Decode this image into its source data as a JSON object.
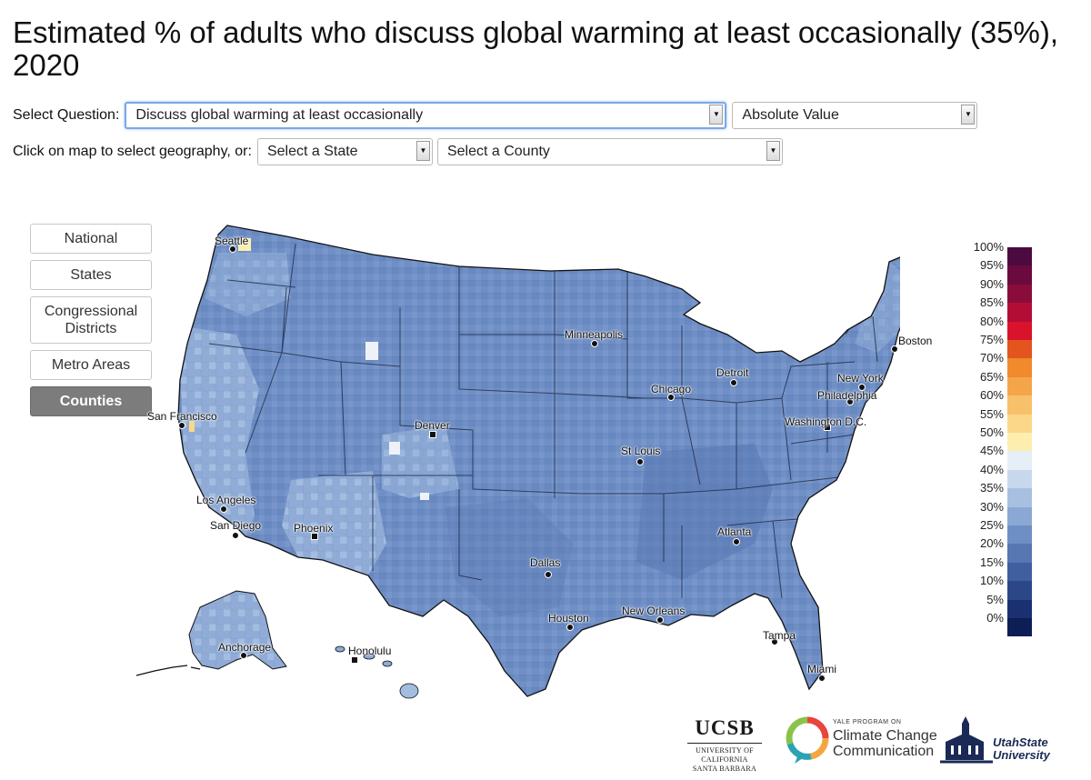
{
  "title": "Estimated % of adults who discuss global warming at least occasionally (35%), 2020",
  "controls": {
    "question_label": "Select Question:",
    "question_value": "Discuss global warming at least occasionally",
    "value_type": "Absolute Value",
    "geo_label": "Click on map to select geography, or:",
    "state_placeholder": "Select a State",
    "county_placeholder": "Select a County"
  },
  "geography_buttons": [
    {
      "label": "National",
      "active": false
    },
    {
      "label": "States",
      "active": false
    },
    {
      "label": "Congressional Districts",
      "active": false
    },
    {
      "label": "Metro Areas",
      "active": false
    },
    {
      "label": "Counties",
      "active": true
    }
  ],
  "legend": {
    "ticks": [
      "100%",
      "95%",
      "90%",
      "85%",
      "80%",
      "75%",
      "70%",
      "65%",
      "60%",
      "55%",
      "50%",
      "45%",
      "40%",
      "35%",
      "30%",
      "25%",
      "20%",
      "15%",
      "10%",
      "5%",
      "0%"
    ],
    "colors_top_to_bottom": [
      "#4d0a40",
      "#6a0a3f",
      "#8a0c3a",
      "#b30d35",
      "#d9132c",
      "#e3541f",
      "#f08a2c",
      "#f4a549",
      "#f7c06a",
      "#fbd889",
      "#fdeeb0",
      "#e6eef7",
      "#c8d8ec",
      "#a8c0e0",
      "#8aa8d3",
      "#6e8fc4",
      "#5677b2",
      "#3f5f9e",
      "#2c4787",
      "#1b3070",
      "#0d1d55"
    ]
  },
  "cities": [
    "Seattle",
    "San Francisco",
    "Los Angeles",
    "San Diego",
    "Phoenix",
    "Denver",
    "Minneapolis",
    "Chicago",
    "Detroit",
    "St Louis",
    "Dallas",
    "Houston",
    "New Orleans",
    "Atlanta",
    "Tampa",
    "Miami",
    "Washington D.C.",
    "Philadelphia",
    "New York",
    "Boston",
    "Anchorage",
    "Honolulu"
  ],
  "logos": {
    "ucsb_main": "UCSB",
    "ucsb_sub1": "UNIVERSITY OF CALIFORNIA",
    "ucsb_sub2": "SANTA BARBARA",
    "yale_small": "YALE PROGRAM ON",
    "yale_line1": "Climate Change",
    "yale_line2": "Communication",
    "usu_line1": "UtahState",
    "usu_line2": "University"
  }
}
